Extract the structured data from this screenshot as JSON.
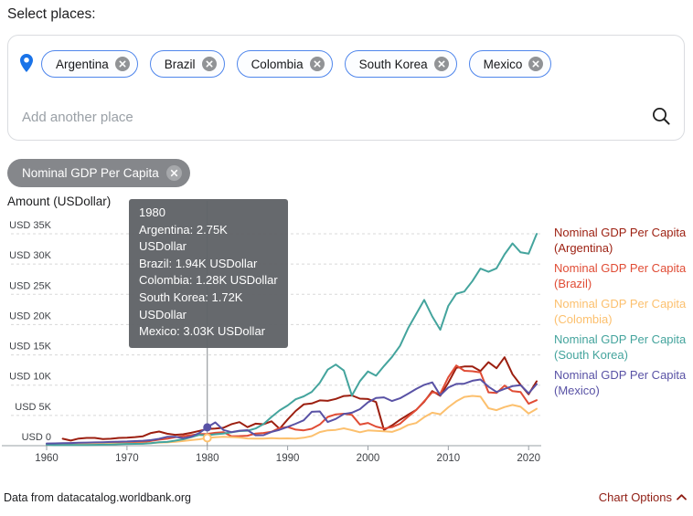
{
  "header": {
    "select_places_label": "Select places:"
  },
  "places_selector": {
    "chips": [
      {
        "label": "Argentina"
      },
      {
        "label": "Brazil"
      },
      {
        "label": "Colombia"
      },
      {
        "label": "South Korea"
      },
      {
        "label": "Mexico"
      }
    ],
    "input_placeholder": "Add another place"
  },
  "topic_chip": {
    "label": "Nominal GDP Per Capita"
  },
  "colors": {
    "accent_blue": "#1a73e8",
    "chip_border_blue": "#4f86ec",
    "chart_options_red": "#8f1d13"
  },
  "chart_data": {
    "type": "line",
    "axis_title": "Amount (USDollar)",
    "unit": "USDollar",
    "value_scale": "thousands of USD",
    "grid": "dashed-horizontal",
    "legend_position": "right",
    "ylim": [
      0,
      35
    ],
    "yticks": [
      {
        "v": 0,
        "label": "USD 0"
      },
      {
        "v": 5,
        "label": "USD 5K"
      },
      {
        "v": 10,
        "label": "USD 10K"
      },
      {
        "v": 15,
        "label": "USD 15K"
      },
      {
        "v": 20,
        "label": "USD 20K"
      },
      {
        "v": 25,
        "label": "USD 25K"
      },
      {
        "v": 30,
        "label": "USD 30K"
      },
      {
        "v": 35,
        "label": "USD 35K"
      }
    ],
    "xticks": [
      1960,
      1970,
      1980,
      1990,
      2000,
      2010,
      2020
    ],
    "x": [
      1960,
      1961,
      1962,
      1963,
      1964,
      1965,
      1966,
      1967,
      1968,
      1969,
      1970,
      1971,
      1972,
      1973,
      1974,
      1975,
      1976,
      1977,
      1978,
      1979,
      1980,
      1981,
      1982,
      1983,
      1984,
      1985,
      1986,
      1987,
      1988,
      1989,
      1990,
      1991,
      1992,
      1993,
      1994,
      1995,
      1996,
      1997,
      1998,
      1999,
      2000,
      2001,
      2002,
      2003,
      2004,
      2005,
      2006,
      2007,
      2008,
      2009,
      2010,
      2011,
      2012,
      2013,
      2014,
      2015,
      2016,
      2017,
      2018,
      2019,
      2020,
      2021
    ],
    "series": [
      {
        "name": "Nominal GDP Per Capita (Argentina)",
        "place": "Argentina",
        "color": "#9c1f10",
        "values": [
          null,
          null,
          1.15,
          0.85,
          1.17,
          1.28,
          1.28,
          1.09,
          1.15,
          1.28,
          1.32,
          1.42,
          1.55,
          2.1,
          2.34,
          1.98,
          1.8,
          1.89,
          2.12,
          2.45,
          2.75,
          2.82,
          2.96,
          3.55,
          3.89,
          3.06,
          3.64,
          3.55,
          4.03,
          2.79,
          4.33,
          5.74,
          6.82,
          6.97,
          7.48,
          7.41,
          7.72,
          8.21,
          8.29,
          7.77,
          7.71,
          7.21,
          2.59,
          3.35,
          4.28,
          5.11,
          5.92,
          7.25,
          9.02,
          8.23,
          10.39,
          12.85,
          13.08,
          13.08,
          12.33,
          13.79,
          12.79,
          14.61,
          11.8,
          10.05,
          8.5,
          10.64
        ]
      },
      {
        "name": "Nominal GDP Per Capita (Brazil)",
        "place": "Brazil",
        "color": "#e04c35",
        "values": [
          0.21,
          0.21,
          0.26,
          0.29,
          0.26,
          0.26,
          0.32,
          0.35,
          0.38,
          0.4,
          0.45,
          0.5,
          0.59,
          0.78,
          1.0,
          1.15,
          1.39,
          1.57,
          1.74,
          1.91,
          1.94,
          2.13,
          2.23,
          1.57,
          1.58,
          1.64,
          2.0,
          2.09,
          2.3,
          2.91,
          3.1,
          2.66,
          2.53,
          2.79,
          3.5,
          4.75,
          5.17,
          5.28,
          5.09,
          3.48,
          3.75,
          3.16,
          2.83,
          3.07,
          3.64,
          4.79,
          5.89,
          7.35,
          8.83,
          8.6,
          11.29,
          13.25,
          12.37,
          12.3,
          12.11,
          8.81,
          8.71,
          9.93,
          9.0,
          8.85,
          6.92,
          7.51
        ]
      },
      {
        "name": "Nominal GDP Per Capita (Colombia)",
        "place": "Colombia",
        "color": "#fcc06e",
        "values": [
          0.25,
          0.27,
          0.29,
          0.28,
          0.33,
          0.31,
          0.29,
          0.3,
          0.31,
          0.32,
          0.33,
          0.35,
          0.38,
          0.43,
          0.51,
          0.55,
          0.63,
          0.77,
          0.92,
          1.06,
          1.28,
          1.4,
          1.46,
          1.42,
          1.35,
          1.19,
          1.16,
          1.16,
          1.23,
          1.19,
          1.21,
          1.18,
          1.32,
          1.59,
          2.25,
          2.53,
          2.61,
          2.87,
          2.56,
          2.22,
          2.52,
          2.44,
          2.39,
          2.28,
          2.75,
          3.42,
          3.74,
          4.71,
          5.45,
          5.19,
          6.34,
          7.33,
          8.05,
          8.22,
          8.11,
          6.18,
          5.87,
          6.38,
          6.73,
          6.42,
          5.31,
          6.1
        ]
      },
      {
        "name": "Nominal GDP Per Capita (South Korea)",
        "place": "South Korea",
        "color": "#44a49d",
        "values": [
          0.16,
          0.09,
          0.11,
          0.14,
          0.12,
          0.11,
          0.13,
          0.16,
          0.2,
          0.24,
          0.28,
          0.3,
          0.32,
          0.4,
          0.56,
          0.62,
          0.83,
          1.05,
          1.4,
          1.78,
          1.72,
          1.88,
          2.0,
          2.2,
          2.41,
          2.48,
          2.83,
          3.56,
          4.75,
          5.82,
          6.64,
          7.66,
          8.14,
          8.89,
          10.39,
          12.57,
          13.4,
          12.42,
          8.28,
          10.67,
          12.26,
          11.56,
          13.16,
          14.67,
          16.5,
          19.4,
          21.74,
          24.08,
          21.35,
          19.14,
          23.08,
          25.1,
          25.47,
          27.18,
          29.25,
          28.73,
          29.29,
          31.6,
          33.42,
          31.93,
          31.73,
          34.98
        ]
      },
      {
        "name": "Nominal GDP Per Capita (Mexico)",
        "place": "Mexico",
        "color": "#5952a5",
        "values": [
          0.36,
          0.38,
          0.4,
          0.44,
          0.49,
          0.51,
          0.54,
          0.57,
          0.62,
          0.66,
          0.7,
          0.75,
          0.81,
          0.92,
          1.13,
          1.47,
          1.46,
          1.25,
          1.49,
          2.1,
          3.03,
          3.84,
          2.6,
          2.24,
          2.47,
          2.57,
          1.72,
          1.74,
          2.28,
          2.62,
          3.11,
          3.62,
          4.2,
          5.6,
          5.65,
          3.91,
          4.42,
          5.24,
          5.45,
          6.04,
          7.16,
          7.87,
          7.98,
          7.37,
          7.83,
          8.58,
          9.37,
          10.04,
          10.45,
          8.33,
          9.59,
          10.2,
          10.24,
          10.73,
          10.93,
          9.75,
          8.87,
          9.38,
          9.83,
          10.0,
          8.66,
          10.17
        ]
      }
    ],
    "highlight": {
      "year": 1980,
      "year_label": "1980",
      "rows": [
        "Argentina: 2.75K USDollar",
        "Brazil: 1.94K USDollar",
        "Colombia: 1.28K USDollar",
        "South Korea: 1.72K USDollar",
        "Mexico: 3.03K USDollar"
      ],
      "points": [
        {
          "series_index": 4,
          "value": 3.03,
          "style": "filled"
        },
        {
          "series_index": 2,
          "value": 1.28,
          "style": "ring"
        }
      ]
    }
  },
  "footer": {
    "source_text": "Data from datacatalog.worldbank.org",
    "chart_options_label": "Chart Options"
  }
}
